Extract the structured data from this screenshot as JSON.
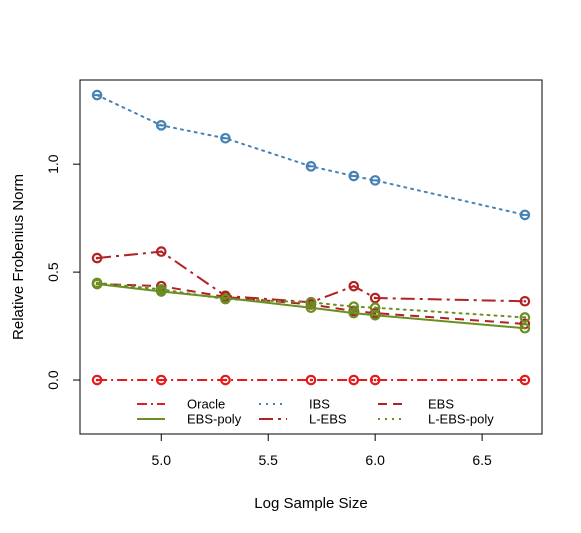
{
  "chart_data": {
    "type": "line",
    "title": "",
    "xlabel": "Log Sample Size",
    "ylabel": "Relative Frobenius Norm",
    "xlim": [
      4.62,
      6.78
    ],
    "ylim": [
      -0.25,
      1.39
    ],
    "x_ticks": [
      5.0,
      5.5,
      6.0,
      6.5
    ],
    "x_tick_labels": [
      "5.0",
      "5.5",
      "6.0",
      "6.5"
    ],
    "y_ticks": [
      0.0,
      0.5,
      1.0
    ],
    "y_tick_labels": [
      "0.0",
      "0.5",
      "1.0"
    ],
    "grid": false,
    "legend_position": "bottom-inside",
    "x": [
      4.7,
      5.0,
      5.3,
      5.7,
      5.9,
      6.0,
      6.7
    ],
    "series": [
      {
        "name": "Oracle",
        "color": "#E41A1C",
        "dash": "dashdot",
        "marker": "dot",
        "values": [
          0.0,
          0.0,
          0.0,
          0.0,
          0.0,
          0.0,
          0.0
        ]
      },
      {
        "name": "IBS",
        "color": "#4682B4",
        "dash": "dotted",
        "marker": "bar",
        "values": [
          1.32,
          1.18,
          1.12,
          0.99,
          0.945,
          0.925,
          0.765
        ]
      },
      {
        "name": "EBS",
        "color": "#B22222",
        "dash": "dashed",
        "marker": "dot",
        "values": [
          0.445,
          0.435,
          0.385,
          0.35,
          0.32,
          0.31,
          0.26
        ]
      },
      {
        "name": "EBS-poly",
        "color": "#6B8E23",
        "dash": "solid",
        "marker": "dot",
        "values": [
          0.445,
          0.41,
          0.38,
          0.335,
          0.31,
          0.3,
          0.24
        ]
      },
      {
        "name": "L-EBS",
        "color": "#B22222",
        "dash": "longdashdot",
        "marker": "dot",
        "values": [
          0.565,
          0.595,
          0.39,
          0.36,
          0.435,
          0.38,
          0.365
        ]
      },
      {
        "name": "L-EBS-poly",
        "color": "#6B8E23",
        "dash": "dotted",
        "marker": "dot",
        "values": [
          0.45,
          0.42,
          0.375,
          0.36,
          0.34,
          0.335,
          0.29
        ]
      }
    ]
  }
}
